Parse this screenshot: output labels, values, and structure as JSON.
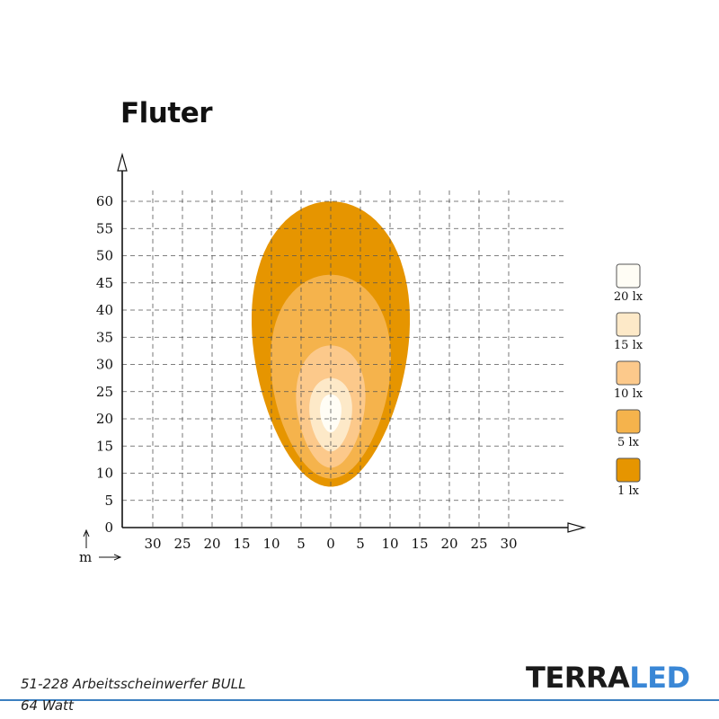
{
  "page": {
    "title": "Fluter",
    "footer_line1": "51-228 Arbeitsscheinwerfer BULL",
    "footer_line2": "64 Watt",
    "brand_part1": "TERRA",
    "brand_part2": "LED"
  },
  "colors": {
    "brand_dark": "#1a1a1a",
    "brand_blue": "#3a87d6",
    "footer_rule": "#3c7fc0"
  },
  "chart_data": {
    "type": "isolux",
    "title": "Fluter",
    "xlabel": "m",
    "ylabel": "",
    "x_ticks": [
      -30,
      -25,
      -20,
      -15,
      -10,
      -5,
      0,
      5,
      10,
      15,
      20,
      25,
      30
    ],
    "x_tick_labels": [
      "30",
      "25",
      "20",
      "15",
      "10",
      "5",
      "0",
      "5",
      "10",
      "15",
      "20",
      "25",
      "30"
    ],
    "y_ticks": [
      0,
      5,
      10,
      15,
      20,
      25,
      30,
      35,
      40,
      45,
      50,
      55,
      60
    ],
    "y_tick_labels": [
      "0",
      "5",
      "10",
      "15",
      "20",
      "25",
      "30",
      "35",
      "40",
      "45",
      "50",
      "55",
      "60"
    ],
    "xlim": [
      -35,
      42
    ],
    "ylim": [
      0,
      67
    ],
    "grid": true,
    "legend_position": "right",
    "zones": [
      {
        "name": "1 lx",
        "color": "#e69500",
        "x_min": -15.5,
        "x_max": 15.5,
        "y_min": 7.5,
        "y_max": 60
      },
      {
        "name": "5 lx",
        "color": "#f5b34c",
        "x_min": -11.8,
        "x_max": 11.8,
        "y_min": 9,
        "y_max": 46.5
      },
      {
        "name": "10 lx",
        "color": "#fcc98b",
        "x_min": -6.8,
        "x_max": 6.8,
        "y_min": 11,
        "y_max": 33.5
      },
      {
        "name": "15 lx",
        "color": "#fde9c8",
        "x_min": -4.2,
        "x_max": 4.2,
        "y_min": 14,
        "y_max": 27.5
      },
      {
        "name": "20 lx",
        "color": "#fffdf5",
        "x_min": -2.1,
        "x_max": 2.1,
        "y_min": 17.5,
        "y_max": 24.5
      }
    ]
  }
}
